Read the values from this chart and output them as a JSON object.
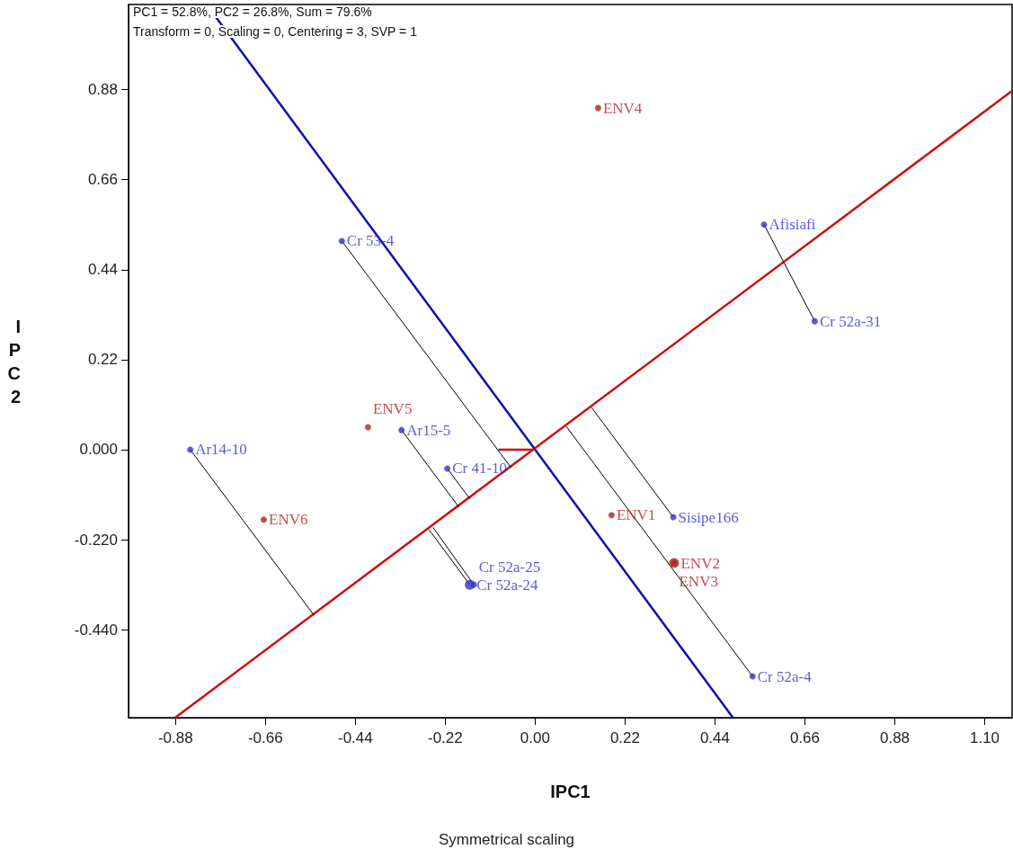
{
  "chart_data": {
    "type": "scatter",
    "xlabel": "IPC1",
    "ylabel": "IPC2",
    "grid": false,
    "legend": false,
    "annotations": [
      "PC1 = 52.8%, PC2 = 26.8%, Sum = 79.6%",
      "Transform = 0, Scaling = 0, Centering = 3, SVP = 1",
      "Symmetrical scaling"
    ],
    "xlim": [
      -0.995,
      1.167
    ],
    "ylim": [
      -0.655,
      1.088
    ],
    "xticks": [
      -0.88,
      -0.66,
      -0.44,
      -0.22,
      {
        "value": 0,
        "label": "0.00"
      },
      0.22,
      0.44,
      0.66,
      0.88,
      {
        "value": 1.1,
        "label": "1.10"
      }
    ],
    "yticks": [
      {
        "value": -0.44,
        "label": "-0.440"
      },
      {
        "value": -0.22,
        "label": "-0.220"
      },
      {
        "value": 0,
        "label": "0.000"
      },
      0.22,
      0.44,
      0.66,
      0.88
    ],
    "series": [
      {
        "type": "line",
        "color": "#cc1111",
        "x": [
          -0.881,
          1.167
        ],
        "values": [
          -0.655,
          0.877
        ]
      },
      {
        "type": "line",
        "color": "#1111aa",
        "x": [
          -0.804,
          0.484
        ],
        "values": [
          1.088,
          -0.655
        ]
      },
      {
        "type": "line",
        "color": "#cc1111",
        "x": [
          -0.09,
          0
        ],
        "values": [
          0,
          0
        ]
      },
      {
        "type": "line",
        "color": "#000000",
        "x": [
          -0.844,
          -0.541
        ],
        "values": [
          0,
          -0.405
        ]
      },
      {
        "type": "line",
        "color": "#000000",
        "x": [
          -0.473,
          -0.059
        ],
        "values": [
          0.51,
          -0.044
        ]
      },
      {
        "type": "line",
        "color": "#000000",
        "x": [
          0.56,
          0.684
        ],
        "values": [
          0.55,
          0.314
        ]
      },
      {
        "type": "line",
        "color": "#000000",
        "x": [
          -0.327,
          -0.187
        ],
        "values": [
          0.048,
          -0.14
        ]
      },
      {
        "type": "line",
        "color": "#000000",
        "x": [
          -0.215,
          -0.16
        ],
        "values": [
          -0.046,
          -0.12
        ]
      },
      {
        "type": "line",
        "color": "#000000",
        "x": [
          -0.16,
          -0.26
        ],
        "values": [
          -0.33,
          -0.195
        ]
      },
      {
        "type": "line",
        "color": "#000000",
        "x": [
          -0.15,
          -0.25
        ],
        "values": [
          -0.33,
          -0.19
        ]
      },
      {
        "type": "line",
        "color": "#000000",
        "x": [
          0.338,
          0.138
        ],
        "values": [
          -0.165,
          0.103
        ]
      },
      {
        "type": "line",
        "color": "#000000",
        "x": [
          0.532,
          0.076
        ],
        "values": [
          -0.554,
          0.057
        ]
      },
      {
        "name": "Ar14-10",
        "color": "#3333cc",
        "marker": "circle",
        "x": [
          -0.844
        ],
        "values": [
          0
        ]
      },
      {
        "name": "Cr 53-4",
        "color": "#3333cc",
        "marker": "circle",
        "x": [
          -0.473
        ],
        "values": [
          0.51
        ]
      },
      {
        "name": "Afisiafi",
        "color": "#3333cc",
        "marker": "circle",
        "x": [
          0.56
        ],
        "values": [
          0.55
        ]
      },
      {
        "name": "Cr 52a-31",
        "color": "#3333cc",
        "marker": "circle",
        "x": [
          0.684
        ],
        "values": [
          0.314
        ]
      },
      {
        "name": "Ar15-5",
        "color": "#3333cc",
        "marker": "circle",
        "x": [
          -0.327
        ],
        "values": [
          0.048
        ]
      },
      {
        "name": "Cr 41-10",
        "color": "#3333cc",
        "marker": "circle",
        "x": [
          -0.215
        ],
        "values": [
          -0.046
        ]
      },
      {
        "name": "Cr 52a-24",
        "color": "#3333cc",
        "marker": "circle",
        "x": [
          -0.16
        ],
        "values": [
          -0.33
        ]
      },
      {
        "name": "Cr 52a-25",
        "color": "#3333cc",
        "marker": "circle",
        "x": [
          -0.15
        ],
        "values": [
          -0.33
        ]
      },
      {
        "name": "Sisipe166",
        "color": "#3333cc",
        "marker": "circle",
        "x": [
          0.338
        ],
        "values": [
          -0.165
        ]
      },
      {
        "name": "Cr 52a-4",
        "color": "#3333cc",
        "marker": "circle",
        "x": [
          0.532
        ],
        "values": [
          -0.554
        ]
      },
      {
        "name": "ENV1",
        "color": "#b22222",
        "marker": "circle",
        "x": [
          0.187
        ],
        "values": [
          -0.16
        ]
      },
      {
        "name": "ENV2",
        "color": "#b22222",
        "marker": "circle",
        "x": [
          0.34
        ],
        "values": [
          -0.277
        ]
      },
      {
        "name": "ENV3",
        "color": "#b22222",
        "marker": "circle",
        "x": [
          0.34
        ],
        "values": [
          -0.277
        ]
      },
      {
        "name": "ENV4",
        "color": "#b22222",
        "marker": "circle",
        "x": [
          0.154
        ],
        "values": [
          0.835
        ]
      },
      {
        "name": "ENV5",
        "color": "#b22222",
        "marker": "circle",
        "x": [
          -0.409
        ],
        "values": [
          0.055
        ]
      },
      {
        "name": "ENV6",
        "color": "#b22222",
        "marker": "circle",
        "x": [
          -0.664
        ],
        "values": [
          -0.171
        ]
      }
    ]
  }
}
